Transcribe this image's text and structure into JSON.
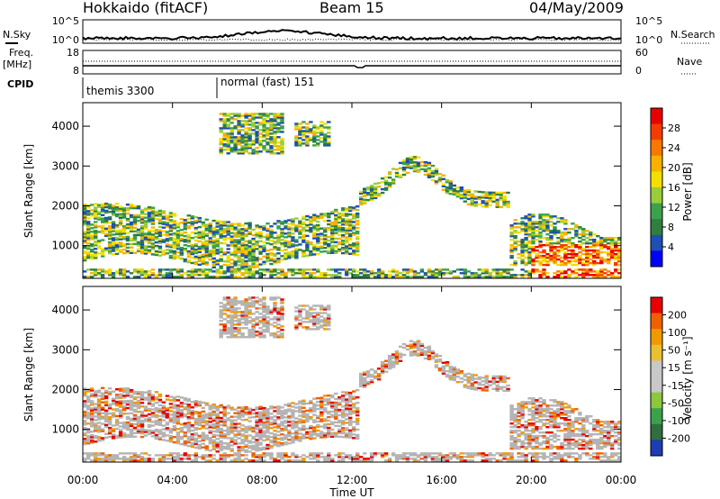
{
  "header": {
    "station": "Hokkaido (fitACF)",
    "beam": "Beam 15",
    "date": "04/May/2009"
  },
  "summary": {
    "nsky_label": "N.Sky",
    "nsky_ticks": [
      "10^5",
      "10^0"
    ],
    "nsearch_label": "N.Search",
    "nsearch_ticks": [
      "10^5",
      "10^0"
    ],
    "freq_label": "Freq.",
    "freq_unit": "[MHz]",
    "freq_ticks": [
      "18",
      "8"
    ],
    "nave_label": "Nave",
    "nave_ticks": [
      "60",
      "0"
    ],
    "cpid_label": "CPID",
    "cpid_segments": [
      {
        "label": "themis 3300",
        "start_hour": 0
      },
      {
        "label": "normal (fast) 151",
        "start_hour": 6
      }
    ]
  },
  "chart_data": [
    {
      "type": "heatmap",
      "quantity": "Power",
      "ylabel": "Slant Range [km]",
      "xlabel": "Time UT",
      "x_ticks": [
        "00:00",
        "04:00",
        "08:00",
        "12:00",
        "16:00",
        "20:00",
        "00:00"
      ],
      "xlim_hours": [
        0,
        24
      ],
      "y_ticks": [
        1000,
        2000,
        3000,
        4000
      ],
      "ylim_km": [
        180,
        4590
      ],
      "colorbar": {
        "label": "Power [dB]",
        "ticks": [
          "4",
          "8",
          "12",
          "16",
          "20",
          "24",
          "28"
        ],
        "range": [
          0,
          30
        ],
        "colors": [
          "#0000ff",
          "#1e4fb4",
          "#2f7f3f",
          "#3aa24a",
          "#9bcc3a",
          "#f2e000",
          "#f9b000",
          "#f87800",
          "#f53c00",
          "#e80000"
        ]
      }
    },
    {
      "type": "heatmap",
      "quantity": "Velocity",
      "ylabel": "Slant Range [km]",
      "xlabel": "Time UT",
      "x_ticks": [
        "00:00",
        "04:00",
        "08:00",
        "12:00",
        "16:00",
        "20:00",
        "00:00"
      ],
      "xlim_hours": [
        0,
        24
      ],
      "y_ticks": [
        1000,
        2000,
        3000,
        4000
      ],
      "ylim_km": [
        180,
        4590
      ],
      "colorbar": {
        "label": "Velocity [m s⁻¹]",
        "ticks": [
          "200",
          "100",
          "50",
          "15",
          "-15",
          "-50",
          "-100",
          "-200"
        ],
        "colors": [
          "#1e3cb4",
          "#2f6f3f",
          "#3aa24a",
          "#8cc83c",
          "#c8c8c8",
          "#c8c8c8",
          "#e8c030",
          "#f09a00",
          "#f06000",
          "#e80000"
        ]
      }
    }
  ],
  "colors": {
    "ground_scatter": "#b4b4b4",
    "foreground": "#000000"
  }
}
